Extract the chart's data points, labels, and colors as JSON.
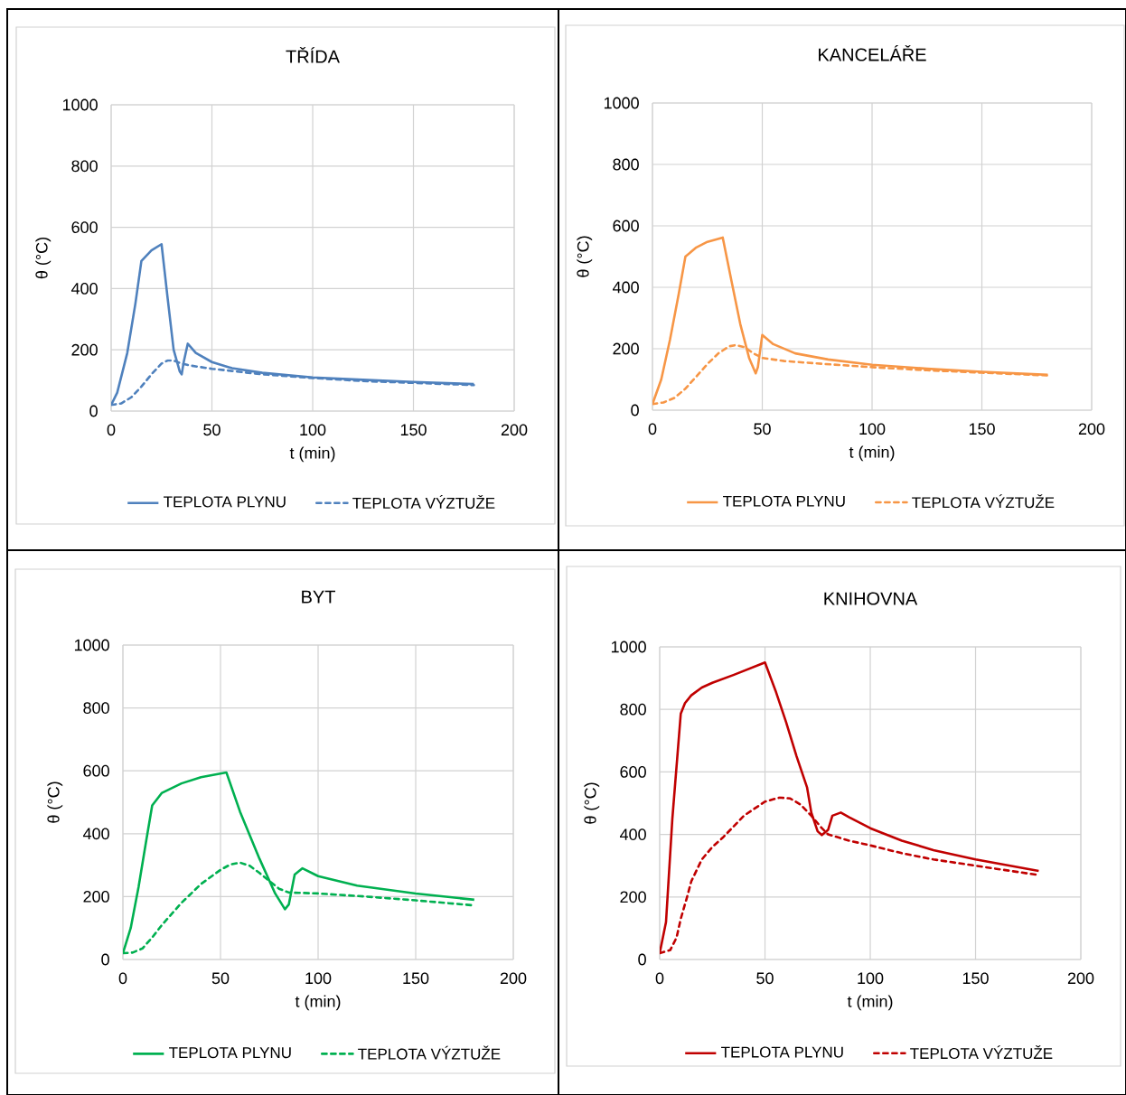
{
  "chart_data": [
    {
      "type": "line",
      "title": "TŘÍDA",
      "xlabel": "t (min)",
      "ylabel": "θ (°C)",
      "xlim": [
        0,
        200
      ],
      "ylim": [
        0,
        1000
      ],
      "xticks": [
        0,
        50,
        100,
        150,
        200
      ],
      "yticks": [
        0,
        200,
        400,
        600,
        800,
        1000
      ],
      "grid": true,
      "legend": "bottom",
      "marker": "none",
      "series": [
        {
          "name": "TEPLOTA PLYNU",
          "color": "#4f81bd",
          "line_style": "solid",
          "x": [
            0,
            3,
            8,
            12,
            15,
            20,
            25,
            28,
            31,
            34,
            35,
            36,
            38,
            42,
            50,
            60,
            75,
            100,
            125,
            150,
            180
          ],
          "values": [
            20,
            60,
            190,
            350,
            490,
            525,
            545,
            370,
            200,
            130,
            120,
            160,
            220,
            190,
            160,
            140,
            125,
            110,
            102,
            95,
            88
          ]
        },
        {
          "name": "TEPLOTA VÝZTUŽE",
          "color": "#4f81bd",
          "line_style": "dashed",
          "x": [
            0,
            5,
            10,
            15,
            20,
            25,
            28,
            31,
            35,
            40,
            50,
            75,
            100,
            125,
            150,
            180
          ],
          "values": [
            20,
            25,
            45,
            80,
            120,
            155,
            165,
            165,
            155,
            148,
            138,
            120,
            108,
            98,
            92,
            85
          ]
        }
      ]
    },
    {
      "type": "line",
      "title": "KANCELÁŘE",
      "xlabel": "t (min)",
      "ylabel": "θ (°C)",
      "xlim": [
        0,
        200
      ],
      "ylim": [
        0,
        1000
      ],
      "xticks": [
        0,
        50,
        100,
        150,
        200
      ],
      "yticks": [
        0,
        200,
        400,
        600,
        800,
        1000
      ],
      "grid": true,
      "legend": "bottom",
      "marker": "none",
      "series": [
        {
          "name": "TEPLOTA PLYNU",
          "color": "#f79646",
          "line_style": "solid",
          "x": [
            0,
            4,
            8,
            12,
            15,
            20,
            25,
            32,
            36,
            40,
            44,
            47,
            48,
            50,
            55,
            65,
            80,
            100,
            125,
            150,
            180
          ],
          "values": [
            20,
            100,
            230,
            380,
            500,
            530,
            548,
            562,
            420,
            280,
            170,
            120,
            140,
            245,
            215,
            185,
            165,
            148,
            135,
            125,
            115
          ]
        },
        {
          "name": "TEPLOTA VÝZTUŽE",
          "color": "#f79646",
          "line_style": "dashed",
          "x": [
            0,
            5,
            10,
            15,
            20,
            25,
            30,
            35,
            38,
            42,
            46,
            50,
            60,
            75,
            100,
            125,
            150,
            180
          ],
          "values": [
            20,
            25,
            40,
            70,
            110,
            150,
            185,
            208,
            212,
            205,
            185,
            170,
            160,
            152,
            140,
            130,
            122,
            113
          ]
        }
      ]
    },
    {
      "type": "line",
      "title": "BYT",
      "xlabel": "t (min)",
      "ylabel": "θ (°C)",
      "xlim": [
        0,
        200
      ],
      "ylim": [
        0,
        1000
      ],
      "xticks": [
        0,
        50,
        100,
        150,
        200
      ],
      "yticks": [
        0,
        200,
        400,
        600,
        800,
        1000
      ],
      "grid": true,
      "legend": "bottom",
      "marker": "none",
      "series": [
        {
          "name": "TEPLOTA PLYNU",
          "color": "#00b050",
          "line_style": "solid",
          "x": [
            0,
            4,
            8,
            12,
            15,
            20,
            30,
            40,
            53,
            60,
            70,
            78,
            83,
            85,
            88,
            92,
            100,
            120,
            150,
            180
          ],
          "values": [
            20,
            100,
            230,
            380,
            490,
            530,
            560,
            580,
            595,
            470,
            320,
            210,
            160,
            175,
            270,
            290,
            265,
            235,
            210,
            190
          ]
        },
        {
          "name": "TEPLOTA VÝZTUŽE",
          "color": "#00b050",
          "line_style": "dashed",
          "x": [
            0,
            5,
            10,
            15,
            20,
            30,
            40,
            50,
            55,
            60,
            65,
            70,
            75,
            80,
            85,
            90,
            100,
            125,
            150,
            180
          ],
          "values": [
            20,
            22,
            35,
            70,
            110,
            180,
            240,
            285,
            302,
            308,
            298,
            275,
            250,
            225,
            213,
            212,
            210,
            200,
            188,
            172
          ]
        }
      ]
    },
    {
      "type": "line",
      "title": "KNIHOVNA",
      "xlabel": "t (min)",
      "ylabel": "θ (°C)",
      "xlim": [
        0,
        200
      ],
      "ylim": [
        0,
        1000
      ],
      "xticks": [
        0,
        50,
        100,
        150,
        200
      ],
      "yticks": [
        0,
        200,
        400,
        600,
        800,
        1000
      ],
      "grid": true,
      "legend": "bottom",
      "marker": "none",
      "series": [
        {
          "name": "TEPLOTA PLYNU",
          "color": "#c00000",
          "line_style": "solid",
          "x": [
            0,
            3,
            6,
            10,
            12,
            15,
            20,
            25,
            35,
            50,
            55,
            60,
            65,
            70,
            72,
            75,
            77,
            80,
            82,
            86,
            90,
            100,
            115,
            130,
            150,
            180
          ],
          "values": [
            20,
            120,
            450,
            786,
            820,
            845,
            870,
            885,
            910,
            950,
            860,
            760,
            650,
            550,
            470,
            410,
            398,
            415,
            460,
            470,
            455,
            420,
            380,
            350,
            320,
            283
          ]
        },
        {
          "name": "TEPLOTA VÝZTUŽE",
          "color": "#c00000",
          "line_style": "dashed",
          "x": [
            0,
            5,
            8,
            10,
            13,
            15,
            20,
            25,
            30,
            40,
            50,
            57,
            62,
            67,
            72,
            77,
            80,
            90,
            100,
            115,
            130,
            150,
            180
          ],
          "values": [
            20,
            30,
            70,
            130,
            200,
            250,
            320,
            360,
            390,
            460,
            505,
            518,
            515,
            495,
            460,
            420,
            400,
            380,
            365,
            340,
            320,
            300,
            270
          ]
        }
      ]
    }
  ]
}
